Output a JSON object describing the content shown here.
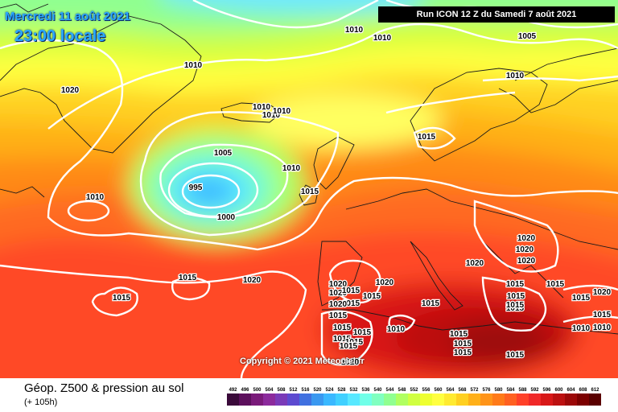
{
  "header": {
    "date": "Mercredi 11 août 2021",
    "time": "23:00 locale",
    "run": "Run ICON 12 Z du Samedi 7 août 2021"
  },
  "copyright": "Copyright © 2021 Meteociel.fr",
  "footer": {
    "title": "Géop. Z500 & pression au sol",
    "subtitle": "(+ 105h)"
  },
  "legend": {
    "values": [
      "492",
      "496",
      "500",
      "504",
      "508",
      "512",
      "516",
      "520",
      "524",
      "528",
      "532",
      "536",
      "540",
      "544",
      "548",
      "552",
      "556",
      "560",
      "564",
      "568",
      "572",
      "576",
      "580",
      "584",
      "588",
      "592",
      "596",
      "600",
      "604",
      "608",
      "612"
    ],
    "colors": [
      "#3a0a3a",
      "#5c0f5c",
      "#7a1a7a",
      "#8c2a9c",
      "#7a3ab8",
      "#5c4ad0",
      "#4070e0",
      "#3a98f0",
      "#3ab8ff",
      "#40d0ff",
      "#58e8ff",
      "#70ffe8",
      "#80ffc0",
      "#90ff90",
      "#b0ff60",
      "#d0ff40",
      "#eeff30",
      "#ffff40",
      "#ffea30",
      "#ffd020",
      "#ffb018",
      "#ff9418",
      "#ff7a18",
      "#ff6020",
      "#ff4028",
      "#f02828",
      "#d81818",
      "#bc1010",
      "#9c0808",
      "#7c0000",
      "#5a0000"
    ]
  },
  "isobar_labels": [
    "1010",
    "1010",
    "1010",
    "1005",
    "1010",
    "1020",
    "1010",
    "1010",
    "1010",
    "1015",
    "1005",
    "1010",
    "1010",
    "995",
    "1000",
    "1015",
    "1010",
    "1015",
    "1020",
    "1015",
    "1020",
    "1020",
    "1020",
    "1015",
    "1015",
    "1015",
    "1020",
    "1020",
    "1015",
    "1015",
    "1015",
    "1015",
    "1015",
    "1015",
    "1015",
    "1015",
    "1015",
    "1015",
    "1015",
    "1020",
    "1020",
    "1015",
    "1015",
    "1020",
    "1015",
    "1015",
    "1020",
    "1015",
    "1010",
    "1015",
    "1010",
    "1015",
    "1020"
  ],
  "colors": {
    "title_text": "#2aa8ff",
    "isobar": "#ffffff",
    "run_box_bg": "#000000"
  }
}
